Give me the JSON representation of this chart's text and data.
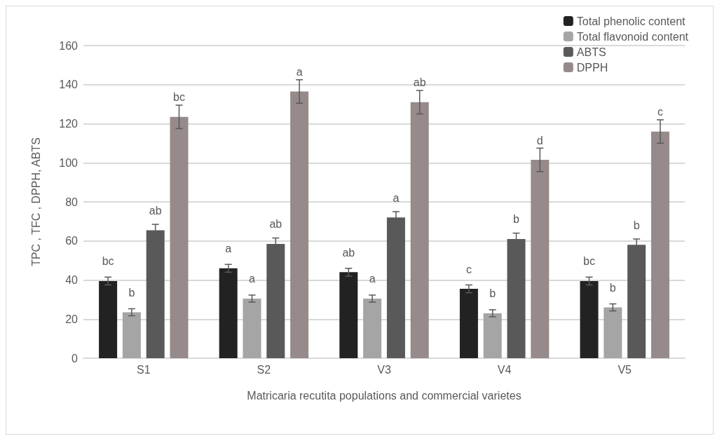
{
  "chart_data": {
    "type": "bar",
    "xlabel": "Matricaria recutita populations and commercial varietes",
    "ylabel": "TPC , TFC , DPPH, ABTS",
    "categories": [
      "S1",
      "S2",
      "V3",
      "V4",
      "V5"
    ],
    "series": [
      {
        "name": "Total phenolic content",
        "color": "#222222",
        "values": [
          39.5,
          46,
          44,
          35.5,
          39.5
        ],
        "errors": [
          2,
          2,
          2,
          2,
          2
        ],
        "value_labels": [
          "bc",
          "a",
          "ab",
          "c",
          "bc"
        ]
      },
      {
        "name": "Total flavonoid content",
        "color": "#a5a5a5",
        "values": [
          23.5,
          30.5,
          30.5,
          23,
          26
        ],
        "errors": [
          1.8,
          1.8,
          1.8,
          1.8,
          1.8
        ],
        "value_labels": [
          "b",
          "a",
          "a",
          "b",
          "b"
        ]
      },
      {
        "name": "ABTS",
        "color": "#595959",
        "values": [
          65.5,
          58.5,
          72,
          61,
          58
        ],
        "errors": [
          3,
          3,
          3,
          3,
          3
        ],
        "value_labels": [
          "ab",
          "ab",
          "a",
          "b",
          "b"
        ]
      },
      {
        "name": "DPPH",
        "color": "#968a8a",
        "values": [
          123.5,
          136.5,
          131,
          101.5,
          116
        ],
        "errors": [
          6,
          6,
          6,
          6,
          6
        ],
        "value_labels": [
          "bc",
          "a",
          "ab",
          "d",
          "c"
        ]
      }
    ],
    "ylim": [
      0,
      160
    ],
    "yticks": [
      0,
      20,
      40,
      60,
      80,
      100,
      120,
      140,
      160
    ],
    "grid": "y",
    "legend": "top right"
  }
}
